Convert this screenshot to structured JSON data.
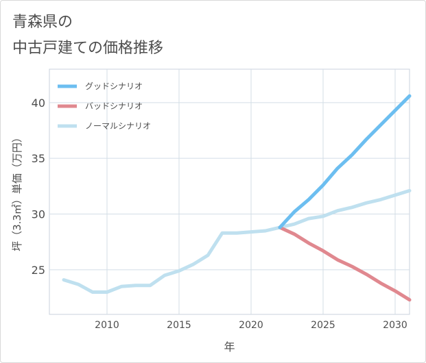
{
  "title_lines": [
    "青森県の",
    "中古戸建ての価格推移"
  ],
  "chart_data": {
    "type": "line",
    "xlabel": "年",
    "ylabel": "坪（3.3㎡）単価（万円）",
    "xlim": [
      2006,
      2031
    ],
    "ylim": [
      21,
      43
    ],
    "xticks": [
      2010,
      2015,
      2020,
      2025,
      2030
    ],
    "yticks": [
      25,
      30,
      35,
      40
    ],
    "grid": true,
    "legend_position": "top-left",
    "series": [
      {
        "name": "グッドシナリオ",
        "color": "#6cbef0",
        "x": [
          2022,
          2023,
          2024,
          2025,
          2026,
          2027,
          2028,
          2029,
          2030,
          2031
        ],
        "y": [
          28.8,
          30.2,
          31.3,
          32.6,
          34.1,
          35.3,
          36.7,
          38.0,
          39.3,
          40.6
        ]
      },
      {
        "name": "バッドシナリオ",
        "color": "#e0888f",
        "x": [
          2022,
          2023,
          2024,
          2025,
          2026,
          2027,
          2028,
          2029,
          2030,
          2031
        ],
        "y": [
          28.8,
          28.2,
          27.4,
          26.7,
          25.9,
          25.3,
          24.6,
          23.8,
          23.1,
          22.3
        ]
      },
      {
        "name": "ノーマルシナリオ",
        "color": "#bfe0ef",
        "x": [
          2007,
          2008,
          2009,
          2010,
          2011,
          2012,
          2013,
          2014,
          2015,
          2016,
          2017,
          2018,
          2019,
          2020,
          2021,
          2022,
          2023,
          2024,
          2025,
          2026,
          2027,
          2028,
          2029,
          2030,
          2031
        ],
        "y": [
          24.1,
          23.7,
          23.0,
          23.0,
          23.5,
          23.6,
          23.6,
          24.5,
          24.9,
          25.5,
          26.3,
          28.3,
          28.3,
          28.4,
          28.5,
          28.8,
          29.1,
          29.6,
          29.8,
          30.3,
          30.6,
          31.0,
          31.3,
          31.7,
          32.1
        ]
      }
    ]
  }
}
